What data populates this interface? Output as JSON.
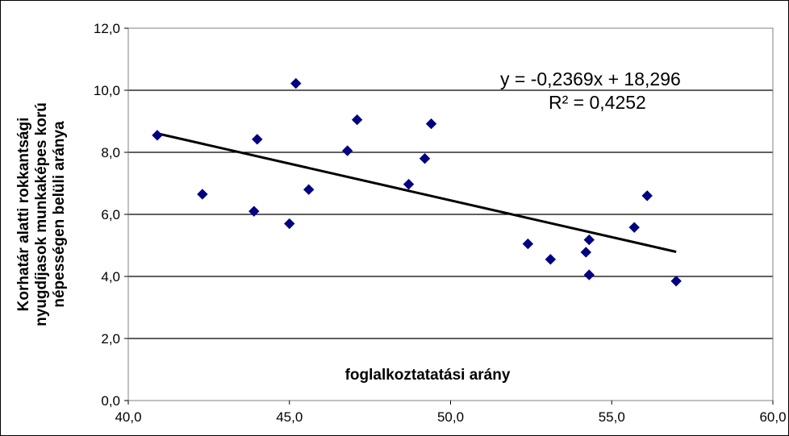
{
  "chart_data": {
    "type": "scatter",
    "title": "",
    "xlabel": "foglalkoztatatási arány",
    "ylabel_lines": [
      "Korhatár alatti rokkantsági",
      "nyugdíjasok munkaképes korú",
      "népességen belüli aránya"
    ],
    "xlim": [
      40,
      60
    ],
    "ylim": [
      0,
      12
    ],
    "x_ticks": [
      "40,0",
      "45,0",
      "50,0",
      "55,0",
      "60,0"
    ],
    "y_ticks": [
      "0,0",
      "2,0",
      "4,0",
      "6,0",
      "8,0",
      "10,0",
      "12,0"
    ],
    "grid": "horizontal",
    "legend": "none",
    "marker_color": "#000080",
    "points": [
      {
        "x": 40.9,
        "y": 8.55
      },
      {
        "x": 42.3,
        "y": 6.65
      },
      {
        "x": 43.9,
        "y": 6.1
      },
      {
        "x": 44.0,
        "y": 8.42
      },
      {
        "x": 45.0,
        "y": 5.7
      },
      {
        "x": 45.2,
        "y": 10.22
      },
      {
        "x": 45.6,
        "y": 6.8
      },
      {
        "x": 46.8,
        "y": 8.05
      },
      {
        "x": 47.1,
        "y": 9.05
      },
      {
        "x": 48.7,
        "y": 6.97
      },
      {
        "x": 49.2,
        "y": 7.8
      },
      {
        "x": 49.4,
        "y": 8.92
      },
      {
        "x": 52.4,
        "y": 5.05
      },
      {
        "x": 53.1,
        "y": 4.55
      },
      {
        "x": 54.2,
        "y": 4.78
      },
      {
        "x": 54.3,
        "y": 5.18
      },
      {
        "x": 54.3,
        "y": 4.05
      },
      {
        "x": 55.7,
        "y": 5.58
      },
      {
        "x": 56.1,
        "y": 6.6
      },
      {
        "x": 57.0,
        "y": 3.85
      }
    ],
    "trendline": {
      "x_range": [
        40.9,
        57.0
      ],
      "slope": -0.2369,
      "intercept": 18.296,
      "equation": "y = -0,2369x + 18,296",
      "r_squared": "R² = 0,4252"
    }
  }
}
